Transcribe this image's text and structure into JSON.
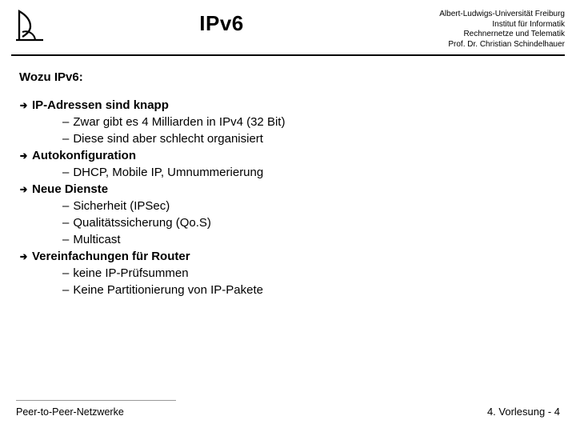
{
  "header": {
    "title": "IPv6",
    "affiliation": [
      "Albert-Ludwigs-Universität Freiburg",
      "Institut für Informatik",
      "Rechnernetze und Telematik",
      "Prof. Dr. Christian Schindelhauer"
    ]
  },
  "section_title": "Wozu IPv6:",
  "bullets": [
    {
      "level": 1,
      "text": "IP-Adressen sind knapp"
    },
    {
      "level": 2,
      "text": "Zwar gibt es 4 Milliarden in IPv4 (32 Bit)"
    },
    {
      "level": 2,
      "text": "Diese sind aber schlecht organisiert"
    },
    {
      "level": 1,
      "text": "Autokonfiguration"
    },
    {
      "level": 2,
      "text": "DHCP, Mobile IP, Umnummerierung"
    },
    {
      "level": 1,
      "text": "Neue Dienste"
    },
    {
      "level": 2,
      "text": "Sicherheit (IPSec)"
    },
    {
      "level": 2,
      "text": "Qualitätssicherung (Qo.S)"
    },
    {
      "level": 2,
      "text": "Multicast"
    },
    {
      "level": 1,
      "text": "Vereinfachungen für Router"
    },
    {
      "level": 2,
      "text": "keine IP-Prüfsummen"
    },
    {
      "level": 2,
      "text": "Keine Partitionierung von IP-Pakete"
    }
  ],
  "footer": {
    "left": "Peer-to-Peer-Netzwerke",
    "right": "4. Vorlesung - 4"
  },
  "colors": {
    "text": "#000000",
    "bg": "#ffffff",
    "divider_light": "#999999"
  }
}
